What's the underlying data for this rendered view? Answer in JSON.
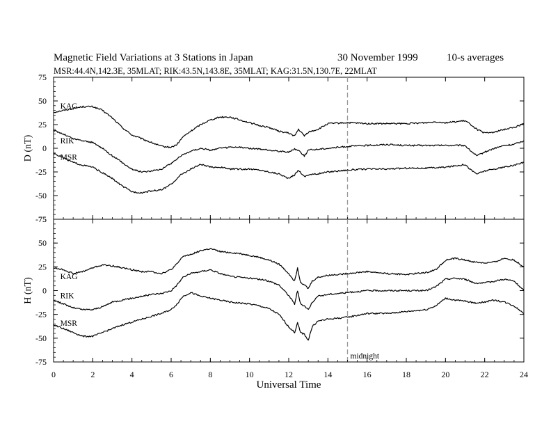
{
  "header": {
    "title": "Magnetic Field Variations at 3 Stations in Japan",
    "date": "30 November 1999",
    "averaging": "10-s averages",
    "stations_line": "MSR:44.4N,142.3E, 35MLAT;  RIK:43.5N,143.8E, 35MLAT;  KAG:31.5N,130.7E, 22MLAT"
  },
  "colors": {
    "trace": "#000000",
    "midnight_line": "#999999",
    "axes": "#000000"
  },
  "chart_data": [
    {
      "type": "line",
      "panel": "top",
      "ylabel": "D (nT)",
      "xlabel": "",
      "xlim": [
        0,
        24
      ],
      "ylim": [
        -75,
        75
      ],
      "xticks": [
        0,
        2,
        4,
        6,
        8,
        10,
        12,
        14,
        16,
        18,
        20,
        22,
        24
      ],
      "yticks": [
        -75,
        -50,
        -25,
        0,
        25,
        50,
        75
      ],
      "tick_labels_x": [
        "0",
        "2",
        "4",
        "6",
        "8",
        "10",
        "12",
        "14",
        "16",
        "18",
        "20",
        "22",
        "24"
      ],
      "tick_labels_y": [
        "-75",
        "-50",
        "-25",
        "0",
        "25",
        "50",
        "75"
      ],
      "annotations": [
        {
          "text": "",
          "x": 15,
          "kind": "dashed-vertical"
        }
      ],
      "series": [
        {
          "name": "KAG",
          "label_at": [
            0.2,
            42
          ],
          "x": [
            0,
            0.5,
            1,
            1.5,
            2,
            2.5,
            3,
            3.5,
            4,
            4.5,
            5,
            5.5,
            6,
            6.3,
            6.6,
            7,
            7.5,
            8,
            8.5,
            9,
            9.5,
            10,
            10.5,
            11,
            11.5,
            12,
            12.3,
            12.5,
            12.8,
            13,
            13.5,
            14,
            15,
            16,
            17,
            18,
            19,
            19.5,
            20,
            21,
            21.3,
            21.6,
            22,
            22.5,
            23,
            23.5,
            24
          ],
          "y": [
            38,
            40,
            42,
            44,
            44,
            40,
            32,
            22,
            14,
            10,
            6,
            2,
            1,
            4,
            12,
            18,
            25,
            30,
            33,
            33,
            30,
            27,
            24,
            22,
            18,
            16,
            13,
            20,
            13,
            17,
            20,
            26,
            27,
            26,
            26,
            26,
            27,
            28,
            27,
            29,
            25,
            20,
            16,
            17,
            20,
            22,
            26
          ]
        },
        {
          "name": "RIK",
          "label_at": [
            0.2,
            5
          ],
          "x": [
            0,
            0.5,
            1,
            1.5,
            2,
            2.5,
            3,
            3.5,
            4,
            4.5,
            5,
            5.5,
            6,
            6.5,
            7,
            7.5,
            8,
            8.5,
            9,
            9.5,
            10,
            10.5,
            11,
            11.5,
            12,
            12.3,
            12.5,
            12.8,
            13,
            13.5,
            14,
            15,
            16,
            17,
            18,
            19,
            20,
            21,
            21.3,
            21.6,
            22,
            22.5,
            23,
            23.5,
            24
          ],
          "y": [
            19,
            15,
            10,
            8,
            6,
            0,
            -8,
            -15,
            -22,
            -25,
            -24,
            -22,
            -16,
            -8,
            -3,
            0,
            -2,
            0,
            1,
            1,
            0,
            -1,
            -2,
            -3,
            -4,
            -1,
            -2,
            -8,
            -2,
            -1,
            0,
            2,
            3,
            4,
            3,
            3,
            3,
            3,
            -3,
            -8,
            -4,
            0,
            3,
            4,
            8
          ]
        },
        {
          "name": "MSR",
          "label_at": [
            0.2,
            -12
          ],
          "x": [
            0,
            0.5,
            1,
            1.5,
            2,
            2.5,
            3,
            3.5,
            4,
            4.5,
            5,
            5.5,
            6,
            6.5,
            7,
            7.5,
            8,
            8.5,
            9,
            9.5,
            10,
            10.5,
            11,
            11.5,
            12,
            12.3,
            12.5,
            12.8,
            13,
            13.5,
            14,
            15,
            16,
            17,
            18,
            19,
            20,
            21,
            21.3,
            21.6,
            22,
            22.5,
            23,
            23.5,
            24
          ],
          "y": [
            -5,
            -10,
            -15,
            -18,
            -20,
            -26,
            -32,
            -40,
            -46,
            -47,
            -45,
            -44,
            -38,
            -28,
            -22,
            -17,
            -20,
            -20,
            -22,
            -22,
            -22,
            -23,
            -25,
            -27,
            -32,
            -28,
            -23,
            -30,
            -28,
            -27,
            -25,
            -23,
            -22,
            -22,
            -21,
            -21,
            -20,
            -17,
            -23,
            -27,
            -24,
            -22,
            -20,
            -18,
            -15
          ]
        }
      ]
    },
    {
      "type": "line",
      "panel": "bottom",
      "ylabel": "H (nT)",
      "xlabel": "Universal Time",
      "xlim": [
        0,
        24
      ],
      "ylim": [
        -75,
        75
      ],
      "xticks": [
        0,
        2,
        4,
        6,
        8,
        10,
        12,
        14,
        16,
        18,
        20,
        22,
        24
      ],
      "yticks": [
        -75,
        -50,
        -25,
        0,
        25,
        50,
        75
      ],
      "tick_labels_x": [
        "0",
        "2",
        "4",
        "6",
        "8",
        "10",
        "12",
        "14",
        "16",
        "18",
        "20",
        "22",
        "24"
      ],
      "tick_labels_y": [
        "-75",
        "-50",
        "-25",
        "0",
        "25",
        "50",
        "75"
      ],
      "annotations": [
        {
          "text": "midnight",
          "x": 15,
          "kind": "dashed-vertical"
        }
      ],
      "series": [
        {
          "name": "KAG",
          "label_at": [
            0.2,
            12
          ],
          "x": [
            0,
            0.5,
            1,
            1.5,
            2,
            2.5,
            3,
            3.5,
            4,
            4.5,
            5,
            5.5,
            6,
            6.3,
            6.6,
            7,
            7.5,
            8,
            8.5,
            9,
            9.5,
            10,
            10.5,
            11,
            11.5,
            12,
            12.3,
            12.45,
            12.6,
            12.8,
            13,
            13.2,
            13.5,
            14,
            15,
            16,
            17,
            18,
            19,
            19.5,
            20,
            20.5,
            21,
            21.5,
            22,
            22.5,
            23,
            23.5,
            24
          ],
          "y": [
            24,
            22,
            18,
            20,
            24,
            27,
            26,
            24,
            22,
            20,
            20,
            18,
            22,
            28,
            36,
            38,
            42,
            44,
            41,
            40,
            39,
            37,
            35,
            32,
            28,
            18,
            10,
            24,
            9,
            6,
            2,
            10,
            14,
            16,
            18,
            20,
            18,
            17,
            19,
            22,
            32,
            34,
            32,
            30,
            29,
            30,
            34,
            32,
            25
          ]
        },
        {
          "name": "RIK",
          "label_at": [
            0.2,
            -8
          ],
          "x": [
            0,
            0.5,
            1,
            1.5,
            2,
            2.5,
            3,
            3.5,
            4,
            4.5,
            5,
            5.5,
            6,
            6.3,
            6.6,
            7,
            7.5,
            8,
            8.5,
            9,
            9.5,
            10,
            10.5,
            11,
            11.5,
            12,
            12.3,
            12.45,
            12.6,
            12.8,
            13,
            13.2,
            13.5,
            14,
            15,
            16,
            17,
            18,
            19,
            19.5,
            20,
            20.5,
            21,
            21.5,
            22,
            22.5,
            23,
            23.5,
            24
          ],
          "y": [
            -10,
            -14,
            -18,
            -20,
            -20,
            -17,
            -12,
            -10,
            -8,
            -6,
            -4,
            -3,
            0,
            6,
            14,
            18,
            20,
            22,
            18,
            15,
            14,
            13,
            12,
            10,
            6,
            -5,
            -14,
            0,
            -14,
            -16,
            -20,
            -12,
            -6,
            -4,
            -2,
            0,
            0,
            0,
            0,
            4,
            12,
            13,
            12,
            8,
            8,
            10,
            12,
            10,
            0
          ]
        },
        {
          "name": "MSR",
          "label_at": [
            0.2,
            -37
          ],
          "x": [
            0,
            0.5,
            1,
            1.5,
            2,
            2.5,
            3,
            3.5,
            4,
            4.5,
            5,
            5.5,
            6,
            6.3,
            6.6,
            7,
            7.5,
            8,
            8.5,
            9,
            9.5,
            10,
            10.5,
            11,
            11.5,
            12,
            12.3,
            12.45,
            12.6,
            12.8,
            13,
            13.2,
            13.5,
            14,
            15,
            16,
            17,
            18,
            19,
            19.5,
            20,
            20.5,
            21,
            21.5,
            22,
            22.5,
            23,
            23.5,
            24
          ],
          "y": [
            -36,
            -40,
            -44,
            -48,
            -48,
            -44,
            -40,
            -36,
            -33,
            -30,
            -27,
            -24,
            -20,
            -14,
            -6,
            -2,
            -6,
            -8,
            -10,
            -12,
            -13,
            -14,
            -16,
            -19,
            -25,
            -38,
            -44,
            -34,
            -44,
            -46,
            -52,
            -38,
            -32,
            -30,
            -28,
            -24,
            -24,
            -22,
            -20,
            -16,
            -8,
            -10,
            -11,
            -13,
            -12,
            -10,
            -12,
            -16,
            -24
          ]
        }
      ]
    }
  ]
}
